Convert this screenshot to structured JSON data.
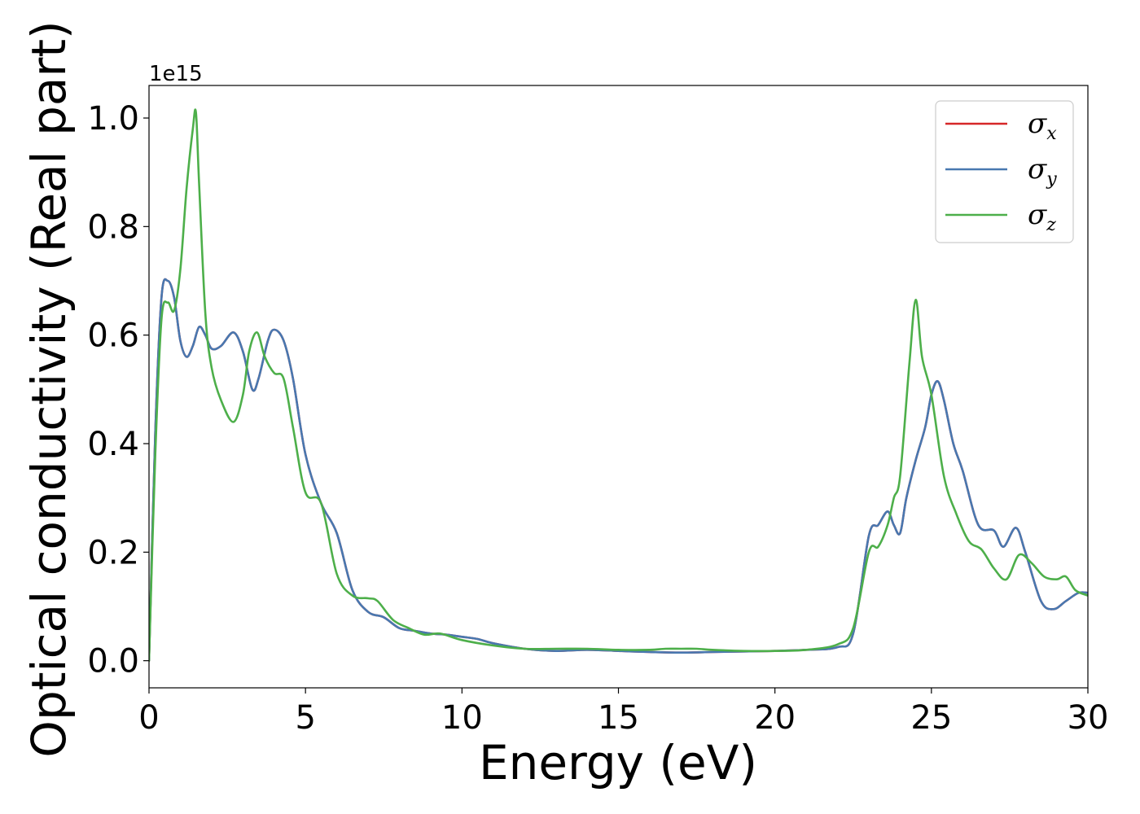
{
  "chart_data": {
    "type": "line",
    "title": "",
    "xlabel": "Energy (eV)",
    "ylabel": "Optical conductivity (Real part)",
    "y_offset_label": "1e15",
    "xlim": [
      0,
      30
    ],
    "ylim": [
      -0.05,
      1.06
    ],
    "xticks": [
      0,
      5,
      10,
      15,
      20,
      25,
      30
    ],
    "xtick_labels": [
      "0",
      "5",
      "10",
      "15",
      "20",
      "25",
      "30"
    ],
    "yticks": [
      0.0,
      0.2,
      0.4,
      0.6,
      0.8,
      1.0
    ],
    "ytick_labels": [
      "0.0",
      "0.2",
      "0.4",
      "0.6",
      "0.8",
      "1.0"
    ],
    "grid": false,
    "legend_position": "top-right",
    "series": [
      {
        "name": "σx",
        "symbol": "σ",
        "subscript": "x",
        "color": "#d62728",
        "x": [
          0,
          0.2,
          0.4,
          0.6,
          0.8,
          1.0,
          1.2,
          1.4,
          1.6,
          1.8,
          2.0,
          2.3,
          2.7,
          3.0,
          3.3,
          3.5,
          3.8,
          4.0,
          4.3,
          4.6,
          5.0,
          5.5,
          6.0,
          6.5,
          7.0,
          7.5,
          8.0,
          8.5,
          9.0,
          9.5,
          10.0,
          10.5,
          11.0,
          12.0,
          13.0,
          14.0,
          15.0,
          16.0,
          17.0,
          18.0,
          19.0,
          20.0,
          21.0,
          22.0,
          22.5,
          23.0,
          23.3,
          23.6,
          23.8,
          24.0,
          24.2,
          24.5,
          24.8,
          25.0,
          25.2,
          25.4,
          25.7,
          26.0,
          26.5,
          27.0,
          27.3,
          27.7,
          28.0,
          28.5,
          28.9,
          29.3,
          29.7,
          30.0
        ],
        "y": [
          0.0,
          0.42,
          0.67,
          0.7,
          0.67,
          0.59,
          0.56,
          0.58,
          0.615,
          0.6,
          0.575,
          0.58,
          0.605,
          0.57,
          0.5,
          0.52,
          0.59,
          0.61,
          0.59,
          0.52,
          0.38,
          0.29,
          0.235,
          0.13,
          0.09,
          0.08,
          0.06,
          0.055,
          0.05,
          0.048,
          0.044,
          0.04,
          0.032,
          0.022,
          0.018,
          0.02,
          0.018,
          0.016,
          0.015,
          0.016,
          0.017,
          0.018,
          0.02,
          0.025,
          0.05,
          0.23,
          0.25,
          0.275,
          0.25,
          0.235,
          0.3,
          0.37,
          0.43,
          0.49,
          0.515,
          0.48,
          0.4,
          0.35,
          0.25,
          0.24,
          0.21,
          0.245,
          0.2,
          0.11,
          0.095,
          0.11,
          0.125,
          0.125
        ]
      },
      {
        "name": "σy",
        "symbol": "σ",
        "subscript": "y",
        "color": "#4878b0",
        "x": [
          0,
          0.2,
          0.4,
          0.6,
          0.8,
          1.0,
          1.2,
          1.4,
          1.6,
          1.8,
          2.0,
          2.3,
          2.7,
          3.0,
          3.3,
          3.5,
          3.8,
          4.0,
          4.3,
          4.6,
          5.0,
          5.5,
          6.0,
          6.5,
          7.0,
          7.5,
          8.0,
          8.5,
          9.0,
          9.5,
          10.0,
          10.5,
          11.0,
          12.0,
          13.0,
          14.0,
          15.0,
          16.0,
          17.0,
          18.0,
          19.0,
          20.0,
          21.0,
          22.0,
          22.5,
          23.0,
          23.3,
          23.6,
          23.8,
          24.0,
          24.2,
          24.5,
          24.8,
          25.0,
          25.2,
          25.4,
          25.7,
          26.0,
          26.5,
          27.0,
          27.3,
          27.7,
          28.0,
          28.5,
          28.9,
          29.3,
          29.7,
          30.0
        ],
        "y": [
          0.0,
          0.42,
          0.67,
          0.7,
          0.67,
          0.59,
          0.56,
          0.58,
          0.615,
          0.6,
          0.575,
          0.58,
          0.605,
          0.57,
          0.5,
          0.52,
          0.59,
          0.61,
          0.59,
          0.52,
          0.38,
          0.29,
          0.235,
          0.13,
          0.09,
          0.08,
          0.06,
          0.055,
          0.05,
          0.048,
          0.044,
          0.04,
          0.032,
          0.022,
          0.018,
          0.02,
          0.018,
          0.016,
          0.015,
          0.016,
          0.017,
          0.018,
          0.02,
          0.025,
          0.05,
          0.23,
          0.25,
          0.275,
          0.25,
          0.235,
          0.3,
          0.37,
          0.43,
          0.49,
          0.515,
          0.48,
          0.4,
          0.35,
          0.25,
          0.24,
          0.21,
          0.245,
          0.2,
          0.11,
          0.095,
          0.11,
          0.125,
          0.125
        ]
      },
      {
        "name": "σz",
        "symbol": "σ",
        "subscript": "z",
        "color": "#4daf4a",
        "x": [
          0,
          0.2,
          0.4,
          0.6,
          0.8,
          1.0,
          1.2,
          1.4,
          1.5,
          1.6,
          1.8,
          2.0,
          2.3,
          2.7,
          3.0,
          3.2,
          3.45,
          3.7,
          4.0,
          4.3,
          4.6,
          5.0,
          5.5,
          6.0,
          6.5,
          7.0,
          7.3,
          7.8,
          8.3,
          8.8,
          9.3,
          10.0,
          11.0,
          12.0,
          13.0,
          14.0,
          15.0,
          16.0,
          16.5,
          17.0,
          17.5,
          18.0,
          19.0,
          20.0,
          21.0,
          22.0,
          22.5,
          23.0,
          23.3,
          23.6,
          23.8,
          24.0,
          24.3,
          24.5,
          24.7,
          25.0,
          25.4,
          25.8,
          26.2,
          26.6,
          27.0,
          27.4,
          27.8,
          28.2,
          28.6,
          29.0,
          29.3,
          29.6,
          30.0
        ],
        "y": [
          0.0,
          0.38,
          0.63,
          0.66,
          0.645,
          0.72,
          0.87,
          0.98,
          1.01,
          0.88,
          0.64,
          0.54,
          0.48,
          0.44,
          0.49,
          0.57,
          0.605,
          0.56,
          0.53,
          0.52,
          0.43,
          0.31,
          0.29,
          0.16,
          0.12,
          0.115,
          0.11,
          0.075,
          0.06,
          0.048,
          0.05,
          0.038,
          0.028,
          0.022,
          0.022,
          0.022,
          0.02,
          0.02,
          0.022,
          0.022,
          0.022,
          0.02,
          0.018,
          0.018,
          0.02,
          0.03,
          0.06,
          0.2,
          0.21,
          0.25,
          0.3,
          0.34,
          0.55,
          0.665,
          0.56,
          0.49,
          0.34,
          0.27,
          0.22,
          0.205,
          0.17,
          0.15,
          0.195,
          0.18,
          0.155,
          0.15,
          0.155,
          0.13,
          0.12
        ]
      }
    ]
  }
}
